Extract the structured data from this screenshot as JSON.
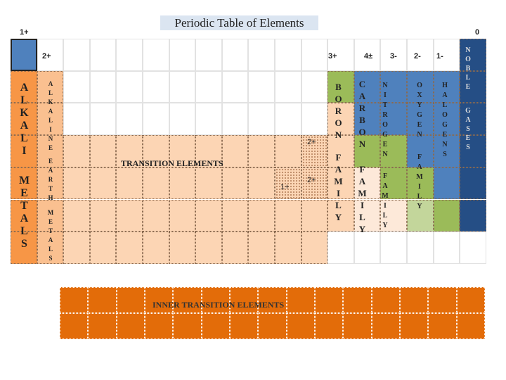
{
  "title": "Periodic Table of Elements",
  "group_labels": {
    "group_1": "1+",
    "group_18": "0",
    "group_2": "2+",
    "group_13": "3+",
    "group_14": "4±",
    "group_15": "3-",
    "group_16": "2-",
    "group_17": "1-"
  },
  "families": {
    "alkali_metals": [
      "ALKALI",
      "METALS"
    ],
    "alkaline_earth_metals": [
      "ALKALINE",
      "EARTH",
      "METALS"
    ],
    "boron_family": [
      "BORON",
      "FAMILY"
    ],
    "carbon_family": [
      "CARBON",
      "FAMILY"
    ],
    "nitrogen_family": [
      "NITROGEN",
      "FAMILY"
    ],
    "oxygen_family": [
      "OXYGEN",
      "FAMILY"
    ],
    "halogens": [
      "HALOGENS"
    ],
    "noble_gases": [
      "NOBLE",
      "GASES"
    ]
  },
  "transition_elements": "TRANSITION ELEMENTS",
  "charges": [
    "2+",
    "2+",
    "1+"
  ],
  "inner_transition_elements": "INNER TRANSITION ELEMENTS"
}
